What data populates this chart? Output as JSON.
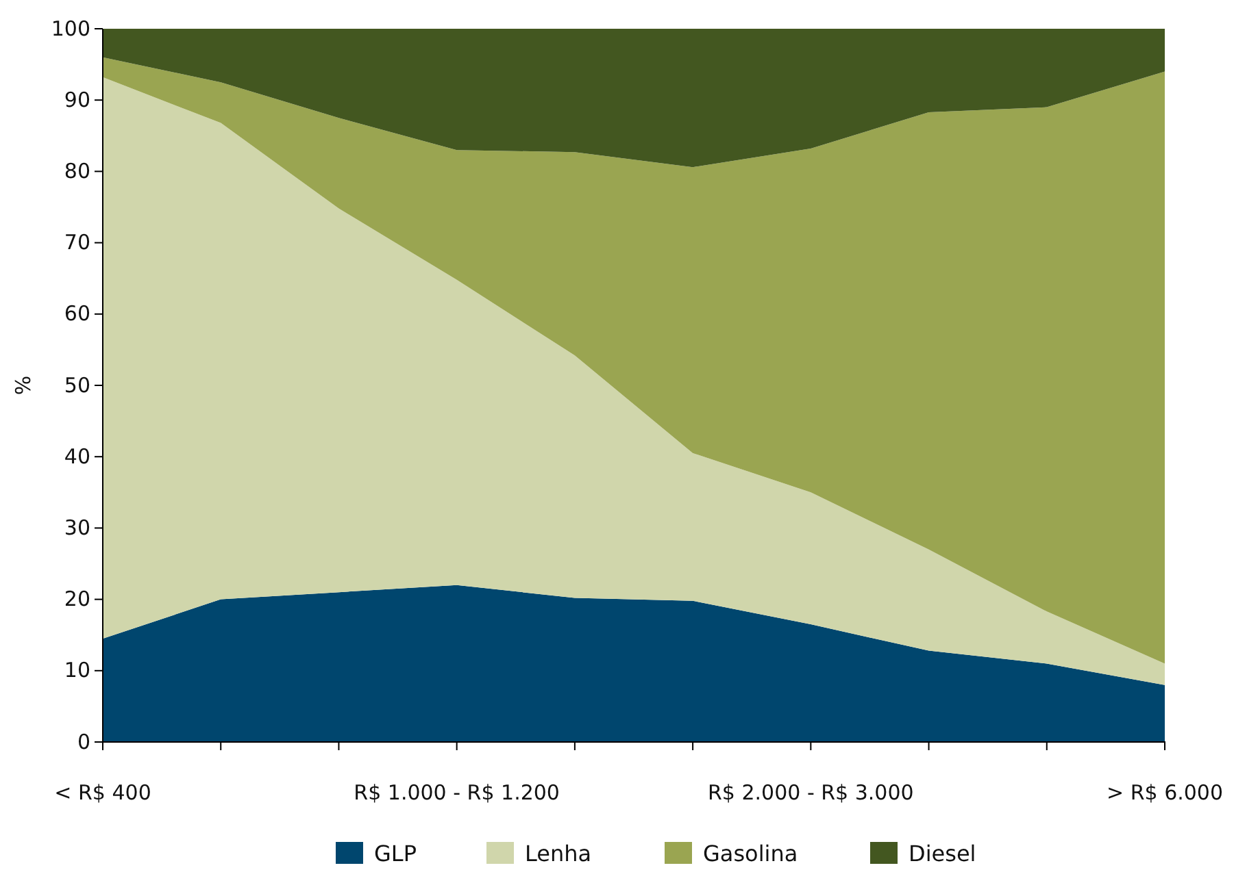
{
  "chart_data": {
    "type": "area",
    "stacked": true,
    "ylabel": "%",
    "categories": [
      "< R$ 400",
      null,
      null,
      "R$ 1.000 - R$ 1.200",
      null,
      null,
      "R$ 2.000 - R$ 3.000",
      null,
      null,
      "> R$ 6.000"
    ],
    "series": [
      {
        "name": "GLP",
        "color": "#00466e",
        "values": [
          14.5,
          20,
          21,
          22,
          20.2,
          19.8,
          16.5,
          12.8,
          11,
          8
        ]
      },
      {
        "name": "Lenha",
        "color": "#d0d6ab",
        "values": [
          78.7,
          66.8,
          53.8,
          42.8,
          34,
          20.7,
          18.5,
          14.2,
          7.3,
          3
        ]
      },
      {
        "name": "Gasolina",
        "color": "#9aa551",
        "values": [
          2.8,
          5.7,
          12.7,
          18.2,
          28.5,
          40.1,
          48.2,
          61.3,
          70.7,
          83
        ]
      },
      {
        "name": "Diesel",
        "color": "#435720",
        "values": [
          4,
          7.5,
          12.5,
          17,
          17.3,
          19.4,
          16.8,
          11.7,
          11,
          6
        ]
      }
    ],
    "ylim": [
      0,
      100
    ],
    "yticks": [
      0,
      10,
      20,
      30,
      40,
      50,
      60,
      70,
      80,
      90,
      100
    ],
    "grid": false,
    "legend": "bottom"
  }
}
